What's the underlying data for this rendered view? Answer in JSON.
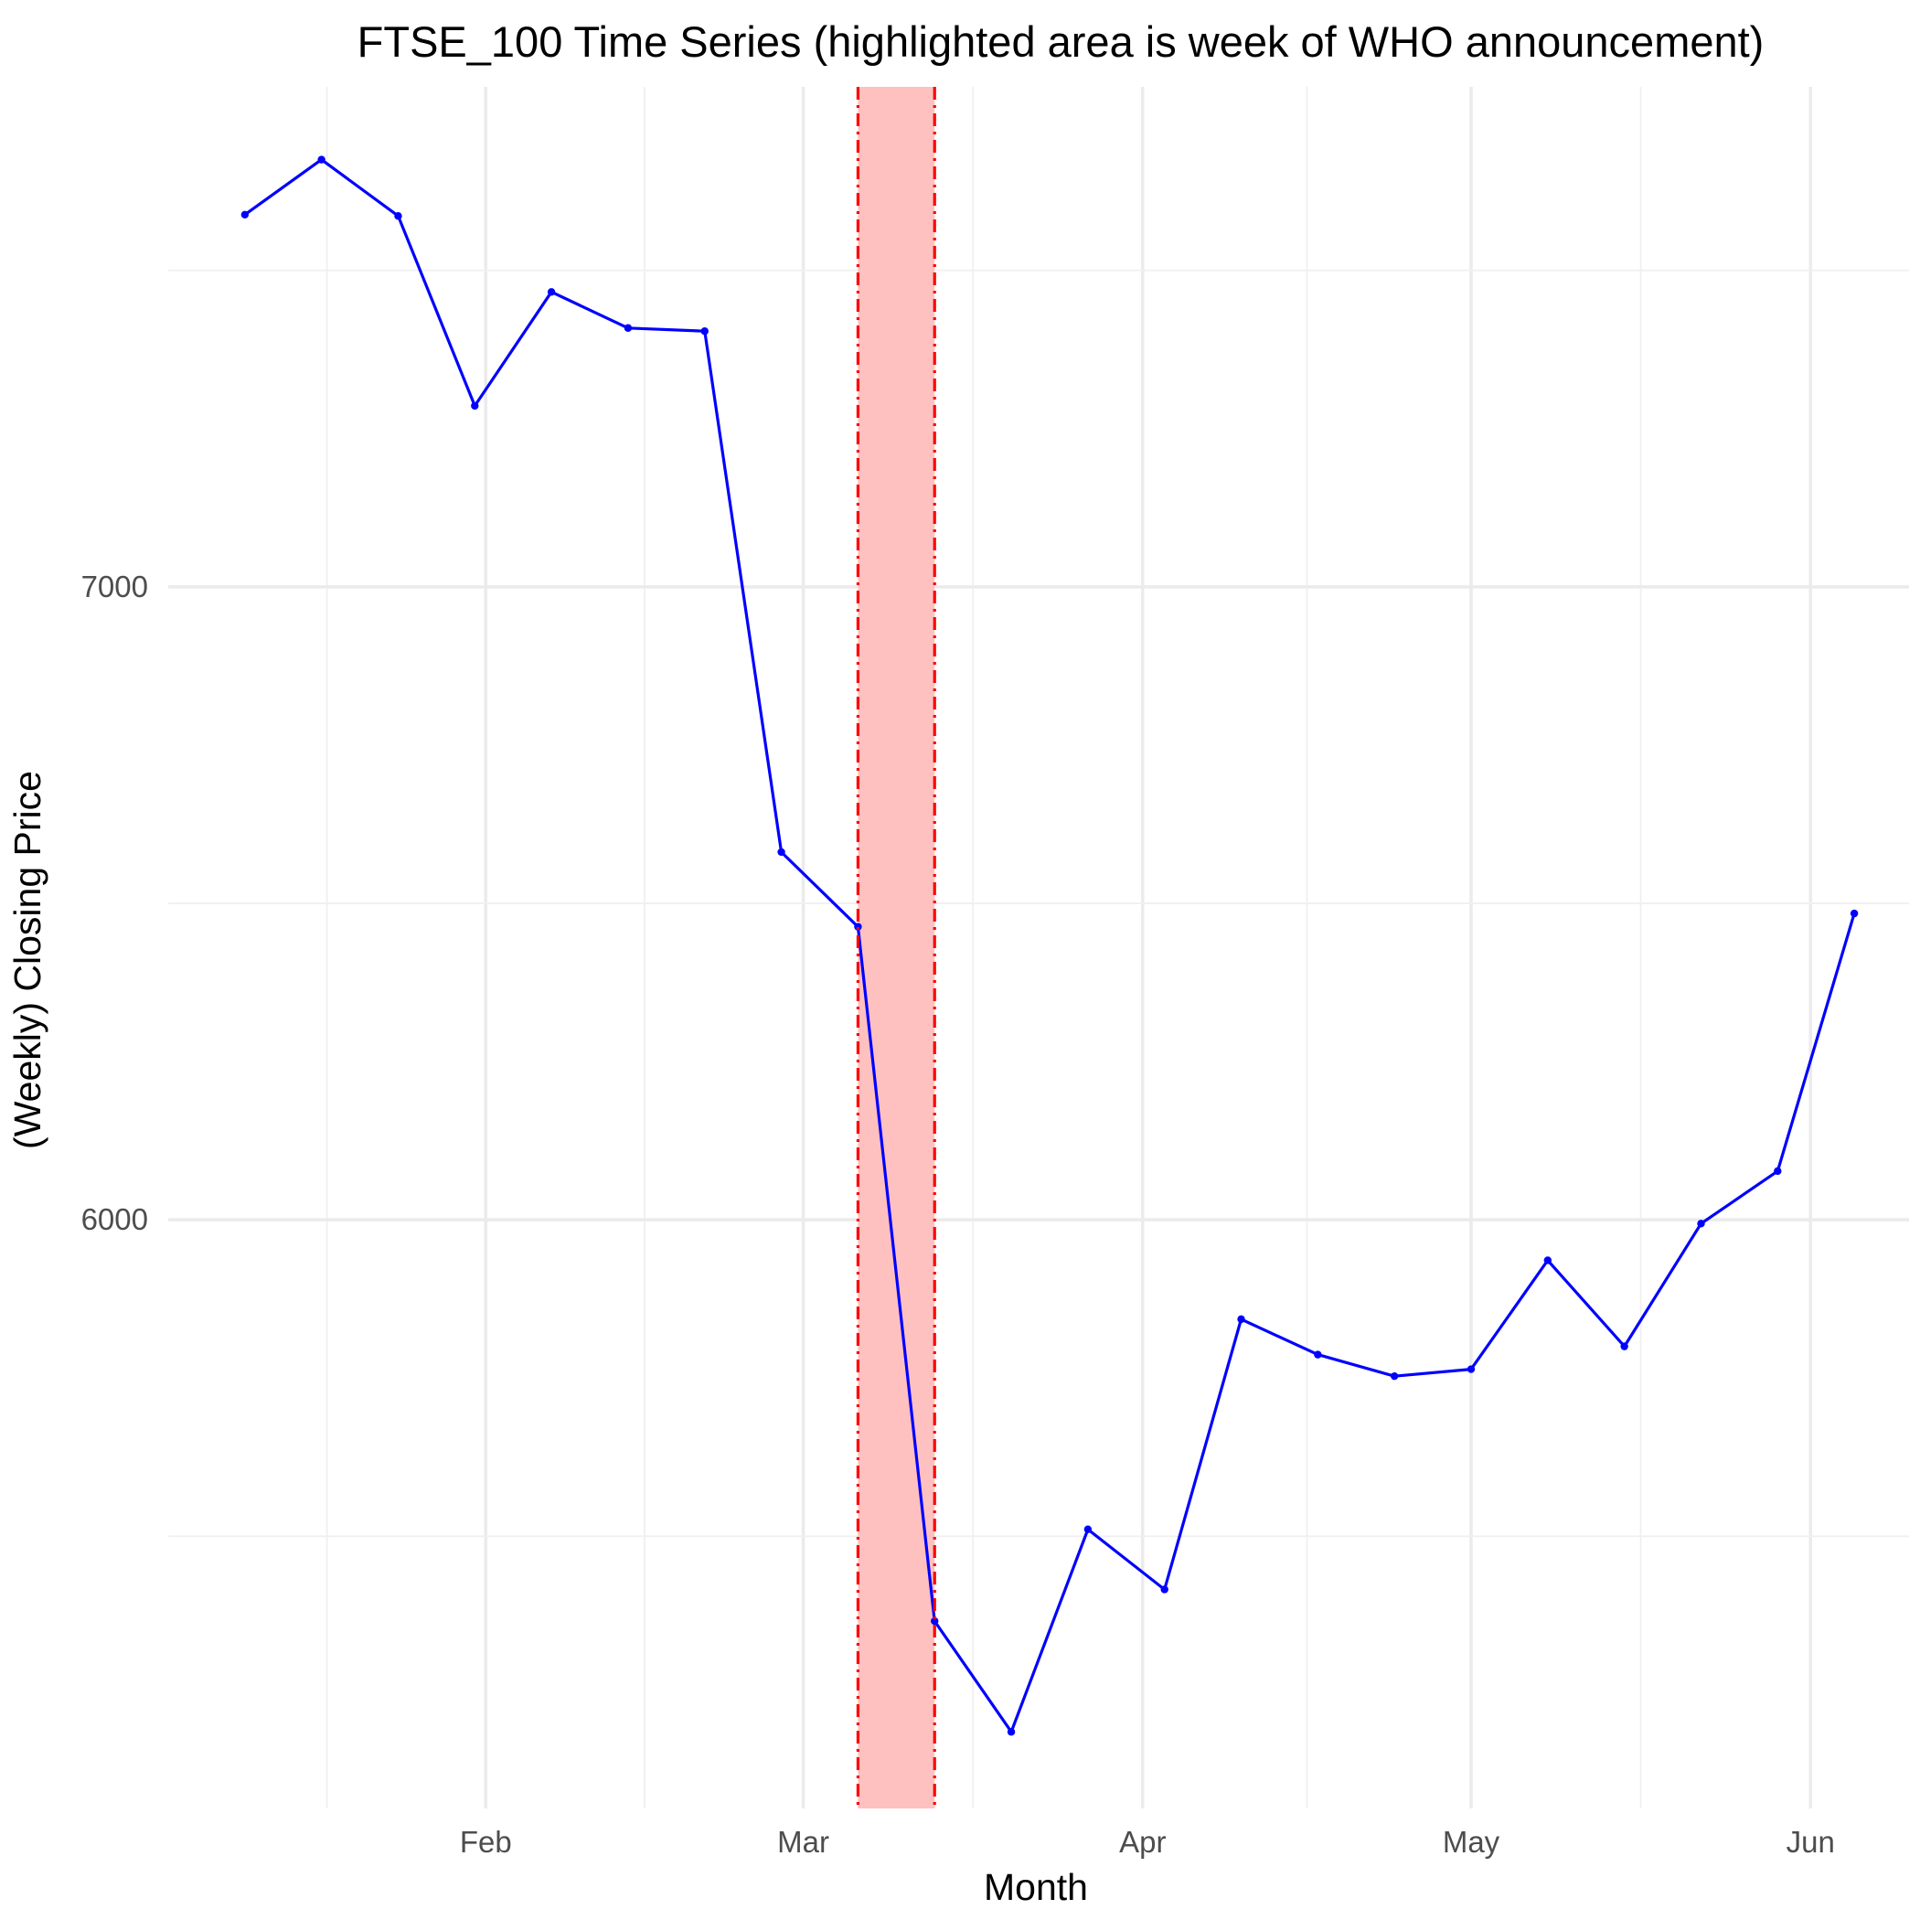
{
  "chart_data": {
    "type": "line",
    "title": "FTSE_100 Time Series (highlighted area is week of WHO announcement)",
    "xlabel": "Month",
    "ylabel": "(Weekly) Closing Price",
    "x_ticks": [
      {
        "date": "2020-02-01",
        "label": "Feb"
      },
      {
        "date": "2020-03-01",
        "label": "Mar"
      },
      {
        "date": "2020-04-01",
        "label": "Apr"
      },
      {
        "date": "2020-05-01",
        "label": "May"
      },
      {
        "date": "2020-06-01",
        "label": "Jun"
      }
    ],
    "y_ticks": [
      6000,
      7000
    ],
    "xlim": [
      "2020-01-03",
      "2020-06-10"
    ],
    "ylim": [
      5070,
      7790
    ],
    "grid": true,
    "highlight": {
      "start": "2020-03-06",
      "end": "2020-03-13",
      "fill": "#ffc0c0",
      "line_color": "#ff0000"
    },
    "series": [
      {
        "color": "#0000ff",
        "points": [
          {
            "x": "2020-01-10",
            "y": 7588
          },
          {
            "x": "2020-01-17",
            "y": 7675
          },
          {
            "x": "2020-01-24",
            "y": 7586
          },
          {
            "x": "2020-01-31",
            "y": 7286
          },
          {
            "x": "2020-02-07",
            "y": 7466
          },
          {
            "x": "2020-02-14",
            "y": 7409
          },
          {
            "x": "2020-02-21",
            "y": 7404
          },
          {
            "x": "2020-02-28",
            "y": 6581
          },
          {
            "x": "2020-03-06",
            "y": 6463
          },
          {
            "x": "2020-03-13",
            "y": 5366
          },
          {
            "x": "2020-03-20",
            "y": 5191
          },
          {
            "x": "2020-03-27",
            "y": 5511
          },
          {
            "x": "2020-04-03",
            "y": 5416
          },
          {
            "x": "2020-04-10",
            "y": 5843
          },
          {
            "x": "2020-04-17",
            "y": 5787
          },
          {
            "x": "2020-04-24",
            "y": 5753
          },
          {
            "x": "2020-05-01",
            "y": 5764
          },
          {
            "x": "2020-05-08",
            "y": 5936
          },
          {
            "x": "2020-05-15",
            "y": 5800
          },
          {
            "x": "2020-05-22",
            "y": 5994
          },
          {
            "x": "2020-05-29",
            "y": 6077
          },
          {
            "x": "2020-06-05",
            "y": 6484
          }
        ]
      }
    ]
  }
}
